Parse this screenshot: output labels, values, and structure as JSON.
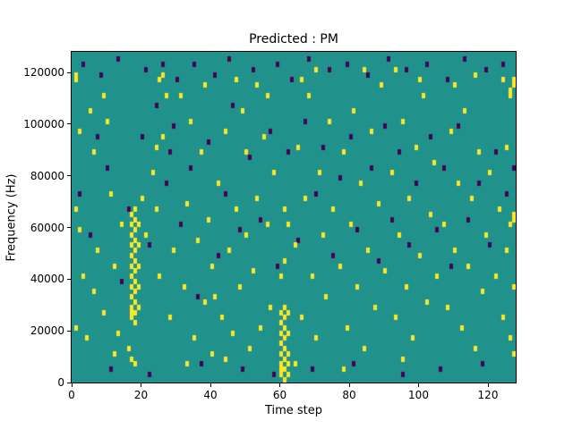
{
  "title": "Predicted : PM",
  "axes": {
    "xlabel": "Time step",
    "ylabel": "Frequency (Hz)",
    "x_ticks": [
      0,
      20,
      40,
      60,
      80,
      100,
      120
    ],
    "y_ticks": [
      0,
      20000,
      40000,
      60000,
      80000,
      100000,
      120000
    ],
    "x_range": [
      0,
      128
    ],
    "y_range": [
      0,
      128000
    ]
  },
  "chart_data": {
    "type": "heatmap",
    "title": "Predicted : PM",
    "xlabel": "Time step",
    "ylabel": "Frequency (Hz)",
    "x_bins": 128,
    "y_bins": 64,
    "x_range": [
      0,
      128
    ],
    "y_range": [
      0,
      128000
    ],
    "grid": false,
    "legend": "none",
    "background_value": 1,
    "value_legend": {
      "0": "dark",
      "1": "background",
      "2": "yellow"
    },
    "colors": {
      "background": "#21918c",
      "yellow": "#fde725",
      "dark": "#440154"
    },
    "cells_yellow": [
      [
        1,
        59
      ],
      [
        1,
        58
      ],
      [
        2,
        48
      ],
      [
        1,
        33
      ],
      [
        2,
        29
      ],
      [
        1,
        10
      ],
      [
        3,
        20
      ],
      [
        5,
        52
      ],
      [
        6,
        44
      ],
      [
        4,
        8
      ],
      [
        6,
        17
      ],
      [
        7,
        25
      ],
      [
        9,
        55
      ],
      [
        10,
        50
      ],
      [
        11,
        36
      ],
      [
        12,
        22
      ],
      [
        13,
        9
      ],
      [
        12,
        5
      ],
      [
        9,
        13
      ],
      [
        14,
        30
      ],
      [
        16,
        6
      ],
      [
        17,
        4
      ],
      [
        18,
        3
      ],
      [
        17,
        12
      ],
      [
        17,
        13
      ],
      [
        17,
        14
      ],
      [
        17,
        16
      ],
      [
        17,
        18
      ],
      [
        17,
        20
      ],
      [
        17,
        22
      ],
      [
        17,
        24
      ],
      [
        17,
        26
      ],
      [
        17,
        28
      ],
      [
        17,
        30
      ],
      [
        17,
        32
      ],
      [
        18,
        11
      ],
      [
        18,
        13
      ],
      [
        18,
        15
      ],
      [
        18,
        17
      ],
      [
        18,
        19
      ],
      [
        18,
        21
      ],
      [
        18,
        23
      ],
      [
        18,
        25
      ],
      [
        18,
        27
      ],
      [
        18,
        29
      ],
      [
        18,
        31
      ],
      [
        18,
        33
      ],
      [
        19,
        14
      ],
      [
        19,
        18
      ],
      [
        19,
        22
      ],
      [
        19,
        26
      ],
      [
        19,
        30
      ],
      [
        20,
        35
      ],
      [
        21,
        28
      ],
      [
        23,
        40
      ],
      [
        24,
        33
      ],
      [
        25,
        20
      ],
      [
        26,
        47
      ],
      [
        27,
        55
      ],
      [
        28,
        12
      ],
      [
        29,
        25
      ],
      [
        25,
        58
      ],
      [
        26,
        59
      ],
      [
        24,
        45
      ],
      [
        32,
        18
      ],
      [
        33,
        34
      ],
      [
        34,
        50
      ],
      [
        35,
        8
      ],
      [
        36,
        27
      ],
      [
        37,
        44
      ],
      [
        38,
        15
      ],
      [
        39,
        31
      ],
      [
        40,
        22
      ],
      [
        40,
        5
      ],
      [
        33,
        3
      ],
      [
        31,
        55
      ],
      [
        38,
        57
      ],
      [
        42,
        38
      ],
      [
        43,
        12
      ],
      [
        44,
        48
      ],
      [
        45,
        25
      ],
      [
        46,
        9
      ],
      [
        47,
        33
      ],
      [
        48,
        18
      ],
      [
        49,
        52
      ],
      [
        50,
        28
      ],
      [
        44,
        4
      ],
      [
        41,
        16
      ],
      [
        47,
        58
      ],
      [
        50,
        44
      ],
      [
        52,
        21
      ],
      [
        53,
        35
      ],
      [
        54,
        10
      ],
      [
        55,
        47
      ],
      [
        56,
        30
      ],
      [
        57,
        14
      ],
      [
        58,
        40
      ],
      [
        53,
        57
      ],
      [
        51,
        6
      ],
      [
        56,
        55
      ],
      [
        60,
        1
      ],
      [
        60,
        2
      ],
      [
        60,
        3
      ],
      [
        60,
        5
      ],
      [
        60,
        7
      ],
      [
        60,
        9
      ],
      [
        60,
        11
      ],
      [
        60,
        13
      ],
      [
        61,
        0
      ],
      [
        61,
        2
      ],
      [
        61,
        4
      ],
      [
        61,
        6
      ],
      [
        61,
        8
      ],
      [
        61,
        10
      ],
      [
        61,
        12
      ],
      [
        61,
        14
      ],
      [
        62,
        1
      ],
      [
        62,
        3
      ],
      [
        62,
        5
      ],
      [
        62,
        9
      ],
      [
        62,
        13
      ],
      [
        60,
        20
      ],
      [
        61,
        23
      ],
      [
        62,
        30
      ],
      [
        61,
        33
      ],
      [
        64,
        26
      ],
      [
        65,
        45
      ],
      [
        66,
        12
      ],
      [
        67,
        35
      ],
      [
        68,
        55
      ],
      [
        69,
        20
      ],
      [
        70,
        8
      ],
      [
        71,
        40
      ],
      [
        72,
        28
      ],
      [
        73,
        16
      ],
      [
        74,
        50
      ],
      [
        75,
        33
      ],
      [
        66,
        58
      ],
      [
        70,
        60
      ],
      [
        64,
        3
      ],
      [
        77,
        22
      ],
      [
        78,
        44
      ],
      [
        79,
        10
      ],
      [
        80,
        30
      ],
      [
        81,
        52
      ],
      [
        82,
        18
      ],
      [
        83,
        38
      ],
      [
        84,
        6
      ],
      [
        85,
        25
      ],
      [
        86,
        48
      ],
      [
        87,
        14
      ],
      [
        88,
        34
      ],
      [
        89,
        57
      ],
      [
        90,
        21
      ],
      [
        78,
        2
      ],
      [
        84,
        60
      ],
      [
        92,
        40
      ],
      [
        93,
        12
      ],
      [
        94,
        28
      ],
      [
        95,
        50
      ],
      [
        96,
        18
      ],
      [
        97,
        35
      ],
      [
        98,
        8
      ],
      [
        99,
        45
      ],
      [
        100,
        24
      ],
      [
        101,
        55
      ],
      [
        102,
        15
      ],
      [
        103,
        32
      ],
      [
        104,
        42
      ],
      [
        105,
        20
      ],
      [
        95,
        4
      ],
      [
        100,
        58
      ],
      [
        93,
        60
      ],
      [
        107,
        30
      ],
      [
        108,
        14
      ],
      [
        109,
        48
      ],
      [
        110,
        25
      ],
      [
        111,
        38
      ],
      [
        112,
        10
      ],
      [
        113,
        52
      ],
      [
        114,
        22
      ],
      [
        115,
        35
      ],
      [
        116,
        6
      ],
      [
        117,
        44
      ],
      [
        118,
        17
      ],
      [
        119,
        28
      ],
      [
        120,
        40
      ],
      [
        110,
        57
      ],
      [
        116,
        59
      ],
      [
        122,
        20
      ],
      [
        123,
        33
      ],
      [
        124,
        12
      ],
      [
        125,
        45
      ],
      [
        126,
        55
      ],
      [
        126,
        56
      ],
      [
        127,
        57
      ],
      [
        127,
        58
      ],
      [
        126,
        30
      ],
      [
        127,
        31
      ],
      [
        127,
        32
      ],
      [
        126,
        8
      ],
      [
        127,
        18
      ],
      [
        125,
        25
      ],
      [
        124,
        58
      ],
      [
        127,
        5
      ]
    ],
    "cells_dark": [
      [
        3,
        61
      ],
      [
        8,
        59
      ],
      [
        13,
        62
      ],
      [
        21,
        60
      ],
      [
        26,
        61
      ],
      [
        30,
        58
      ],
      [
        35,
        61
      ],
      [
        41,
        59
      ],
      [
        45,
        62
      ],
      [
        52,
        60
      ],
      [
        59,
        61
      ],
      [
        63,
        58
      ],
      [
        68,
        62
      ],
      [
        74,
        60
      ],
      [
        79,
        61
      ],
      [
        85,
        59
      ],
      [
        91,
        62
      ],
      [
        96,
        60
      ],
      [
        102,
        61
      ],
      [
        108,
        58
      ],
      [
        113,
        62
      ],
      [
        119,
        60
      ],
      [
        124,
        61
      ],
      [
        2,
        36
      ],
      [
        5,
        28
      ],
      [
        7,
        47
      ],
      [
        10,
        41
      ],
      [
        14,
        19
      ],
      [
        16,
        33
      ],
      [
        20,
        47
      ],
      [
        22,
        26
      ],
      [
        24,
        53
      ],
      [
        27,
        38
      ],
      [
        28,
        44
      ],
      [
        29,
        49
      ],
      [
        31,
        30
      ],
      [
        34,
        41
      ],
      [
        36,
        16
      ],
      [
        39,
        46
      ],
      [
        42,
        24
      ],
      [
        44,
        36
      ],
      [
        46,
        53
      ],
      [
        48,
        29
      ],
      [
        51,
        43
      ],
      [
        54,
        31
      ],
      [
        57,
        48
      ],
      [
        59,
        22
      ],
      [
        62,
        44
      ],
      [
        65,
        27
      ],
      [
        67,
        50
      ],
      [
        70,
        36
      ],
      [
        72,
        45
      ],
      [
        75,
        24
      ],
      [
        77,
        39
      ],
      [
        80,
        47
      ],
      [
        82,
        29
      ],
      [
        86,
        41
      ],
      [
        88,
        23
      ],
      [
        90,
        49
      ],
      [
        92,
        31
      ],
      [
        94,
        44
      ],
      [
        97,
        26
      ],
      [
        99,
        38
      ],
      [
        103,
        47
      ],
      [
        105,
        29
      ],
      [
        107,
        41
      ],
      [
        109,
        22
      ],
      [
        111,
        49
      ],
      [
        114,
        31
      ],
      [
        117,
        38
      ],
      [
        120,
        26
      ],
      [
        122,
        44
      ],
      [
        125,
        36
      ],
      [
        127,
        41
      ],
      [
        11,
        2
      ],
      [
        22,
        1
      ],
      [
        37,
        3
      ],
      [
        49,
        2
      ],
      [
        58,
        1
      ],
      [
        69,
        2
      ],
      [
        81,
        3
      ],
      [
        95,
        1
      ],
      [
        106,
        2
      ],
      [
        118,
        3
      ]
    ]
  }
}
